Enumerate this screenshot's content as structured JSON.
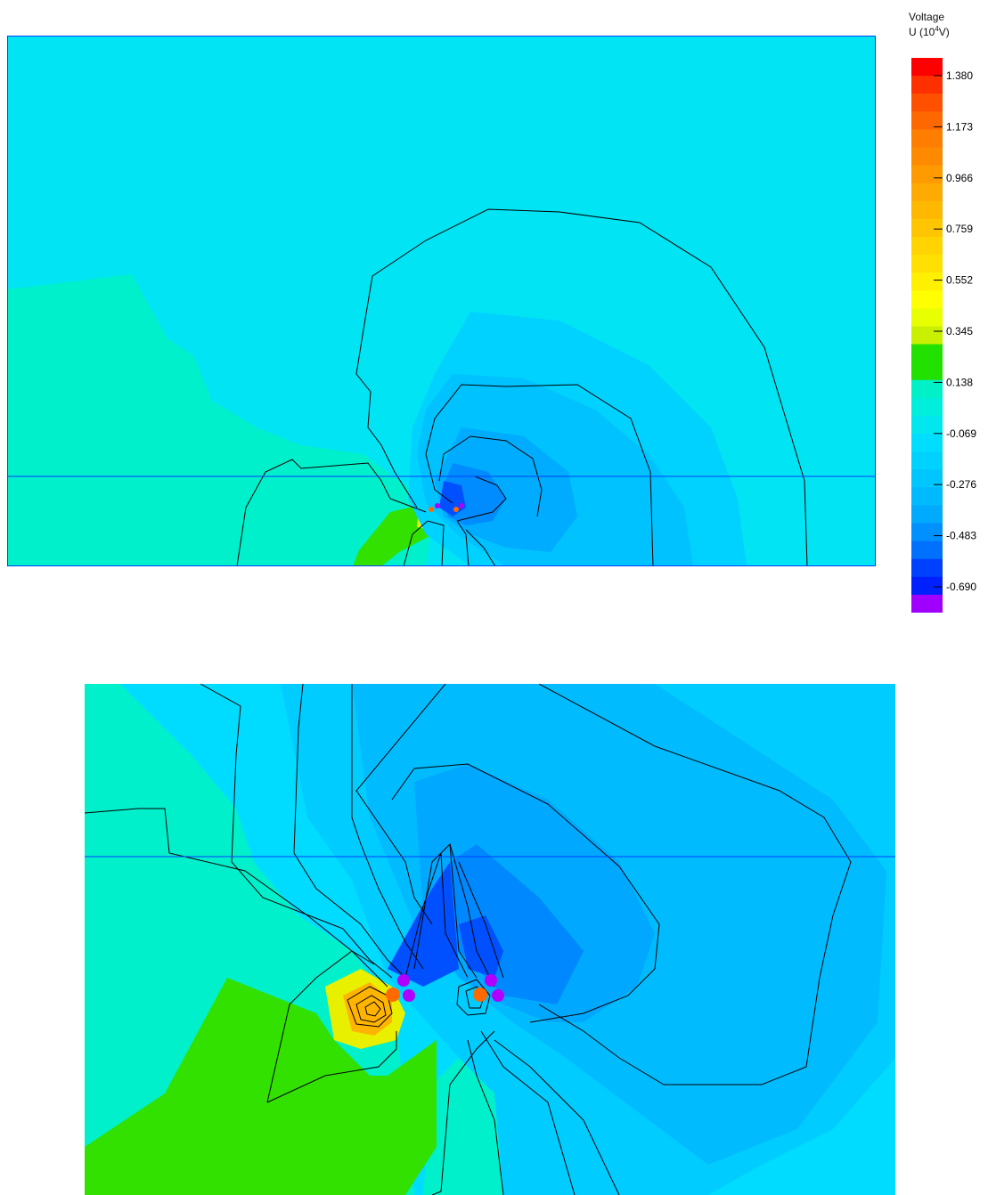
{
  "chart_data": {
    "type": "heatmap",
    "legend": {
      "title_line1": "Voltage",
      "title_prefix": "U (10",
      "title_exponent": "4",
      "title_suffix": "V)",
      "tick_labels": [
        "1.380",
        "1.173",
        "0.966",
        "0.759",
        "0.552",
        "0.345",
        "0.138",
        "-0.069",
        "-0.276",
        "-0.483",
        "-0.690"
      ],
      "colors": [
        "#ff0000",
        "#ff3000",
        "#ff5000",
        "#ff6800",
        "#ff7e00",
        "#ff8a00",
        "#ff9a00",
        "#ffaa00",
        "#ffb800",
        "#ffc600",
        "#ffd400",
        "#ffe000",
        "#fff000",
        "#ffff00",
        "#e8ff00",
        "#c8f000",
        "#22e000",
        "#22e000",
        "#00f0c8",
        "#00eedc",
        "#00e8ee",
        "#00deff",
        "#00d2ff",
        "#00c6ff",
        "#00baff",
        "#00aaff",
        "#0090ff",
        "#0070ff",
        "#0040ff",
        "#0020ff",
        "#a000ff"
      ]
    },
    "field_colors": {
      "background": "#00e4f4",
      "level_minus_0_1": "#00d8ff",
      "level_minus_0_2": "#00ccff",
      "level_minus_0_3": "#00bcff",
      "level_minus_0_4": "#00a8ff",
      "level_minus_0_5": "#0088ff",
      "level_minus_0_6": "#0050ff",
      "green_region": "#00f0cc",
      "green_strong": "#33e100",
      "yellow": "#e8f000",
      "orange": "#ffb400",
      "conductor_hot": "#ff6a00",
      "conductor_cold": "#b000ff"
    }
  }
}
